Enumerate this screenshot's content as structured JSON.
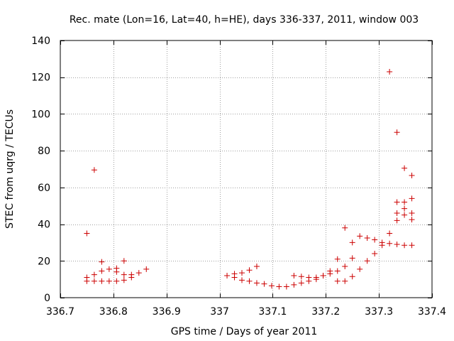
{
  "chart_data": {
    "type": "scatter",
    "title": "Rec. mate (Lon=16, Lat=40, h=HE), days 336-337, 2011, window 003",
    "xlabel": "GPS time / Days of year 2011",
    "ylabel": "STEC from uqrg / TECUs",
    "xlim": [
      336.7,
      337.4
    ],
    "ylim": [
      0,
      140
    ],
    "xticks": [
      336.7,
      336.8,
      336.9,
      337.0,
      337.1,
      337.2,
      337.3,
      337.4
    ],
    "xtick_labels": [
      "336.7",
      "336.8",
      "336.9",
      "337",
      "337.1",
      "337.2",
      "337.3",
      "337.4"
    ],
    "yticks": [
      0,
      20,
      40,
      60,
      80,
      100,
      120,
      140
    ],
    "ytick_labels": [
      "0",
      "20",
      "40",
      "60",
      "80",
      "100",
      "120",
      "140"
    ],
    "grid": true,
    "marker": "+",
    "color": "#cc0000",
    "series": [
      {
        "name": "STEC",
        "points": [
          [
            336.75,
            35
          ],
          [
            336.75,
            11
          ],
          [
            336.75,
            9
          ],
          [
            336.764,
            69.5
          ],
          [
            336.764,
            12.5
          ],
          [
            336.764,
            9
          ],
          [
            336.778,
            19.5
          ],
          [
            336.778,
            14.5
          ],
          [
            336.778,
            9
          ],
          [
            336.792,
            15.5
          ],
          [
            336.792,
            9
          ],
          [
            336.806,
            16
          ],
          [
            336.806,
            14
          ],
          [
            336.806,
            9
          ],
          [
            336.82,
            20
          ],
          [
            336.82,
            12.5
          ],
          [
            336.82,
            9.5
          ],
          [
            336.834,
            12.5
          ],
          [
            336.834,
            11
          ],
          [
            336.848,
            13.5
          ],
          [
            336.862,
            15.5
          ],
          [
            337.014,
            12
          ],
          [
            337.028,
            13
          ],
          [
            337.028,
            11
          ],
          [
            337.042,
            13.5
          ],
          [
            337.042,
            9.5
          ],
          [
            337.056,
            15
          ],
          [
            337.056,
            9
          ],
          [
            337.07,
            17
          ],
          [
            337.07,
            8
          ],
          [
            337.084,
            7.5
          ],
          [
            337.098,
            6.5
          ],
          [
            337.112,
            6
          ],
          [
            337.126,
            6
          ],
          [
            337.14,
            12
          ],
          [
            337.14,
            7
          ],
          [
            337.154,
            11.5
          ],
          [
            337.154,
            8
          ],
          [
            337.168,
            11
          ],
          [
            337.168,
            9
          ],
          [
            337.182,
            11
          ],
          [
            337.182,
            10
          ],
          [
            337.195,
            12
          ],
          [
            337.195,
            12
          ],
          [
            337.208,
            14.5
          ],
          [
            337.208,
            13
          ],
          [
            337.222,
            21
          ],
          [
            337.222,
            14.5
          ],
          [
            337.222,
            9
          ],
          [
            337.236,
            38
          ],
          [
            337.236,
            17
          ],
          [
            337.236,
            9
          ],
          [
            337.25,
            30
          ],
          [
            337.25,
            21.5
          ],
          [
            337.25,
            11.5
          ],
          [
            337.264,
            33.5
          ],
          [
            337.264,
            15.5
          ],
          [
            337.278,
            32.5
          ],
          [
            337.278,
            20
          ],
          [
            337.292,
            31.5
          ],
          [
            337.292,
            24
          ],
          [
            337.306,
            30
          ],
          [
            337.306,
            28.5
          ],
          [
            337.32,
            123
          ],
          [
            337.32,
            35
          ],
          [
            337.32,
            29.5
          ],
          [
            337.334,
            90
          ],
          [
            337.334,
            52
          ],
          [
            337.334,
            46
          ],
          [
            337.334,
            42
          ],
          [
            337.334,
            29
          ],
          [
            337.348,
            70.5
          ],
          [
            337.348,
            52
          ],
          [
            337.348,
            48.5
          ],
          [
            337.348,
            45
          ],
          [
            337.348,
            28.5
          ],
          [
            337.362,
            66.5
          ],
          [
            337.362,
            54
          ],
          [
            337.362,
            46
          ],
          [
            337.362,
            42.5
          ],
          [
            337.362,
            28.5
          ]
        ]
      }
    ]
  }
}
